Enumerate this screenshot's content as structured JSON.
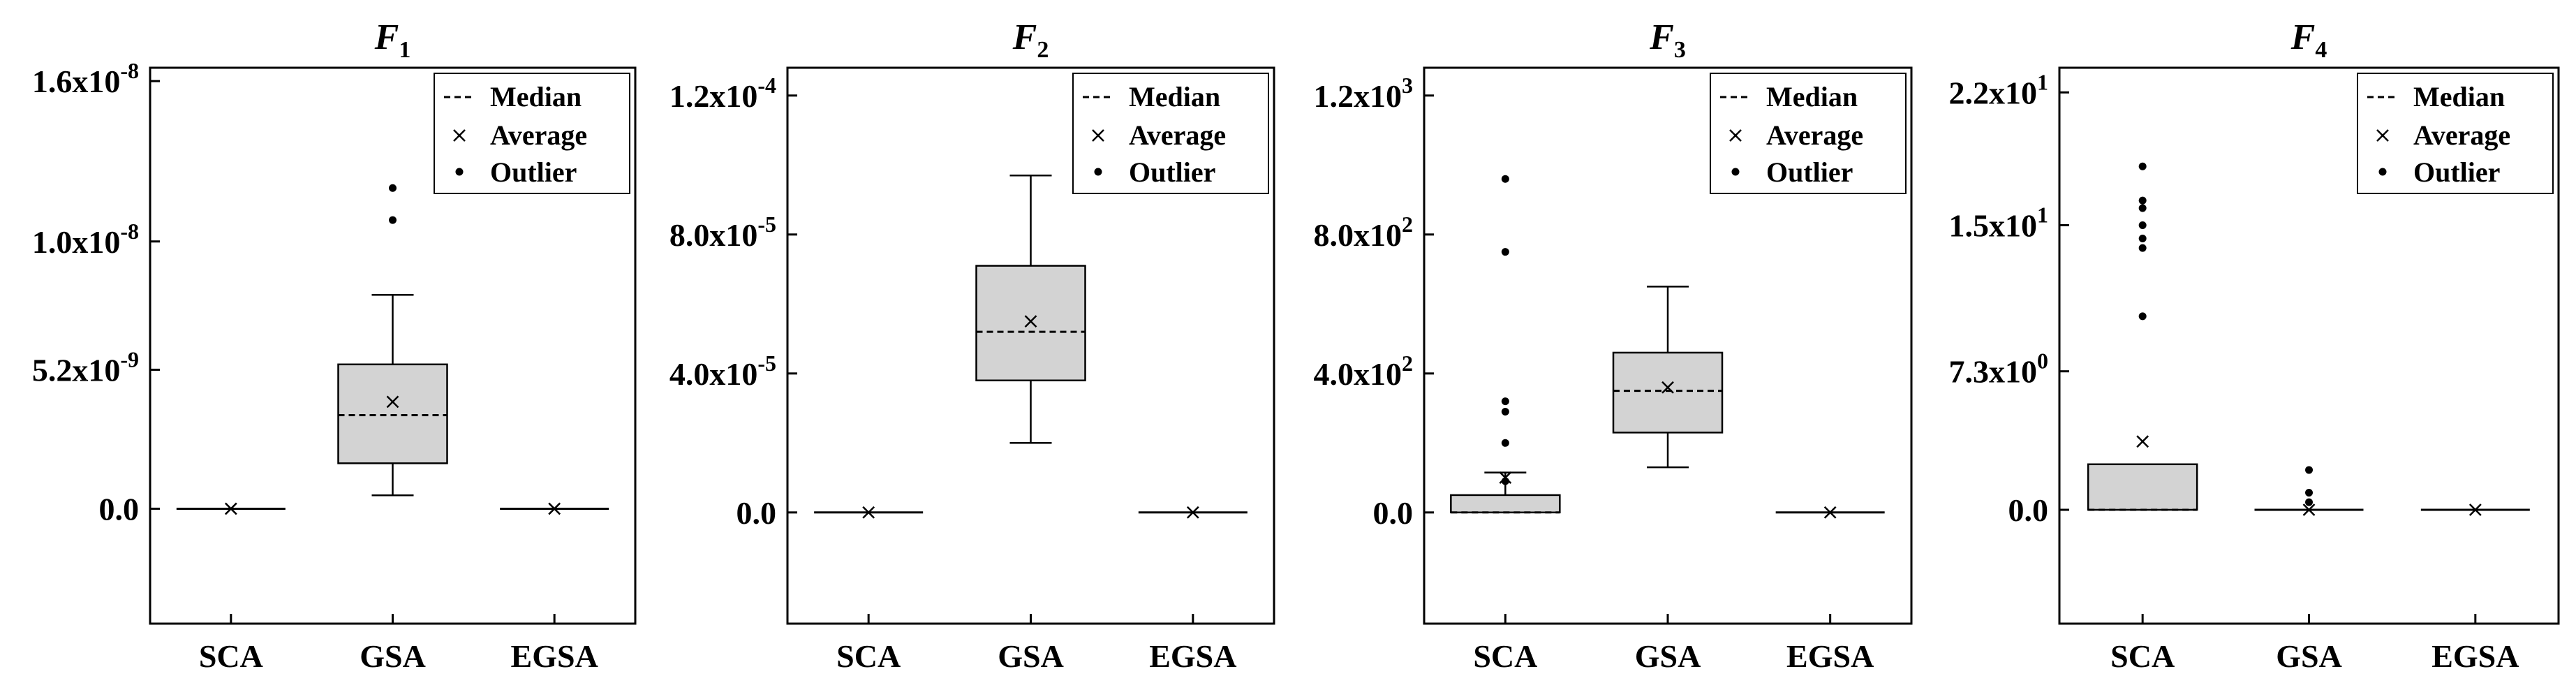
{
  "legend": {
    "median": "Median",
    "average": "Average",
    "outlier": "Outlier"
  },
  "colors": {
    "box_fill": "#d3d3d3",
    "stroke": "#000000"
  },
  "chart_data": [
    {
      "type": "box",
      "title": "F",
      "title_subscript": "1",
      "categories": [
        "SCA",
        "GSA",
        "EGSA"
      ],
      "ylim": [
        -4.3e-09,
        1.65e-08
      ],
      "yticks": [
        0,
        5.2e-09,
        1e-08,
        1.6e-08
      ],
      "ytick_labels": [
        "0.0",
        "5.2x10-9",
        "1.0x10-8",
        "1.6x10-8"
      ],
      "ytick_exponents": [
        "",
        "-9",
        "-8",
        "-8"
      ],
      "ytick_mantissas": [
        "0.0",
        "5.2x10",
        "1.0x10",
        "1.6x10"
      ],
      "boxes": [
        {
          "category": "SCA",
          "whisker_low": 0,
          "q1": 0,
          "median": 0,
          "q3": 0,
          "whisker_high": 0,
          "mean": 0,
          "outliers": []
        },
        {
          "category": "GSA",
          "whisker_low": 5e-10,
          "q1": 1.7e-09,
          "median": 3.5e-09,
          "q3": 5.4e-09,
          "whisker_high": 8e-09,
          "mean": 4e-09,
          "outliers": [
            1.08e-08,
            1.2e-08
          ]
        },
        {
          "category": "EGSA",
          "whisker_low": 0,
          "q1": 0,
          "median": 0,
          "q3": 0,
          "whisker_high": 0,
          "mean": 0,
          "outliers": []
        }
      ]
    },
    {
      "type": "box",
      "title": "F",
      "title_subscript": "2",
      "categories": [
        "SCA",
        "GSA",
        "EGSA"
      ],
      "ylim": [
        -3.2e-05,
        0.000128
      ],
      "yticks": [
        0,
        4e-05,
        8e-05,
        0.00012
      ],
      "ytick_labels": [
        "0.0",
        "4.0x10-5",
        "8.0x10-5",
        "1.2x10-4"
      ],
      "ytick_exponents": [
        "",
        "-5",
        "-5",
        "-4"
      ],
      "ytick_mantissas": [
        "0.0",
        "4.0x10",
        "8.0x10",
        "1.2x10"
      ],
      "boxes": [
        {
          "category": "SCA",
          "whisker_low": 0,
          "q1": 0,
          "median": 0,
          "q3": 0,
          "whisker_high": 0,
          "mean": 0,
          "outliers": []
        },
        {
          "category": "GSA",
          "whisker_low": 2e-05,
          "q1": 3.8e-05,
          "median": 5.2e-05,
          "q3": 7.1e-05,
          "whisker_high": 9.7e-05,
          "mean": 5.5e-05,
          "outliers": []
        },
        {
          "category": "EGSA",
          "whisker_low": 0,
          "q1": 0,
          "median": 0,
          "q3": 0,
          "whisker_high": 0,
          "mean": 0,
          "outliers": []
        }
      ]
    },
    {
      "type": "box",
      "title": "F",
      "title_subscript": "3",
      "categories": [
        "SCA",
        "GSA",
        "EGSA"
      ],
      "ylim": [
        -320,
        1280
      ],
      "yticks": [
        0,
        400,
        800,
        1200
      ],
      "ytick_labels": [
        "0.0",
        "4.0x102",
        "8.0x102",
        "1.2x103"
      ],
      "ytick_exponents": [
        "",
        "2",
        "2",
        "3"
      ],
      "ytick_mantissas": [
        "0.0",
        "4.0x10",
        "8.0x10",
        "1.2x10"
      ],
      "boxes": [
        {
          "category": "SCA",
          "whisker_low": 0,
          "q1": 0,
          "median": 0,
          "q3": 50,
          "whisker_high": 115,
          "mean": 100,
          "outliers": [
            90,
            200,
            290,
            320,
            750,
            960
          ]
        },
        {
          "category": "GSA",
          "whisker_low": 130,
          "q1": 230,
          "median": 350,
          "q3": 460,
          "whisker_high": 650,
          "mean": 360,
          "outliers": []
        },
        {
          "category": "EGSA",
          "whisker_low": 0,
          "q1": 0,
          "median": 0,
          "q3": 0,
          "whisker_high": 0,
          "mean": 0,
          "outliers": []
        }
      ]
    },
    {
      "type": "box",
      "title": "F",
      "title_subscript": "4",
      "categories": [
        "SCA",
        "GSA",
        "EGSA"
      ],
      "ylim": [
        -6.0,
        23.3
      ],
      "yticks": [
        0,
        7.3,
        15.0,
        22.0
      ],
      "ytick_labels": [
        "0.0",
        "7.3x100",
        "1.5x101",
        "2.2x101"
      ],
      "ytick_exponents": [
        "",
        "0",
        "1",
        "1"
      ],
      "ytick_mantissas": [
        "0.0",
        "7.3x10",
        "1.5x10",
        "2.2x10"
      ],
      "boxes": [
        {
          "category": "SCA",
          "whisker_low": 0,
          "q1": 0,
          "median": 0,
          "q3": 2.4,
          "whisker_high": 2.4,
          "mean": 3.6,
          "outliers": [
            10.2,
            13.8,
            14.3,
            15.0,
            15.9,
            16.3,
            18.1
          ]
        },
        {
          "category": "GSA",
          "whisker_low": 0,
          "q1": 0,
          "median": 0,
          "q3": 0,
          "whisker_high": 0,
          "mean": 0,
          "outliers": [
            0.4,
            0.9,
            2.1
          ]
        },
        {
          "category": "EGSA",
          "whisker_low": 0,
          "q1": 0,
          "median": 0,
          "q3": 0,
          "whisker_high": 0,
          "mean": 0,
          "outliers": []
        }
      ]
    }
  ]
}
